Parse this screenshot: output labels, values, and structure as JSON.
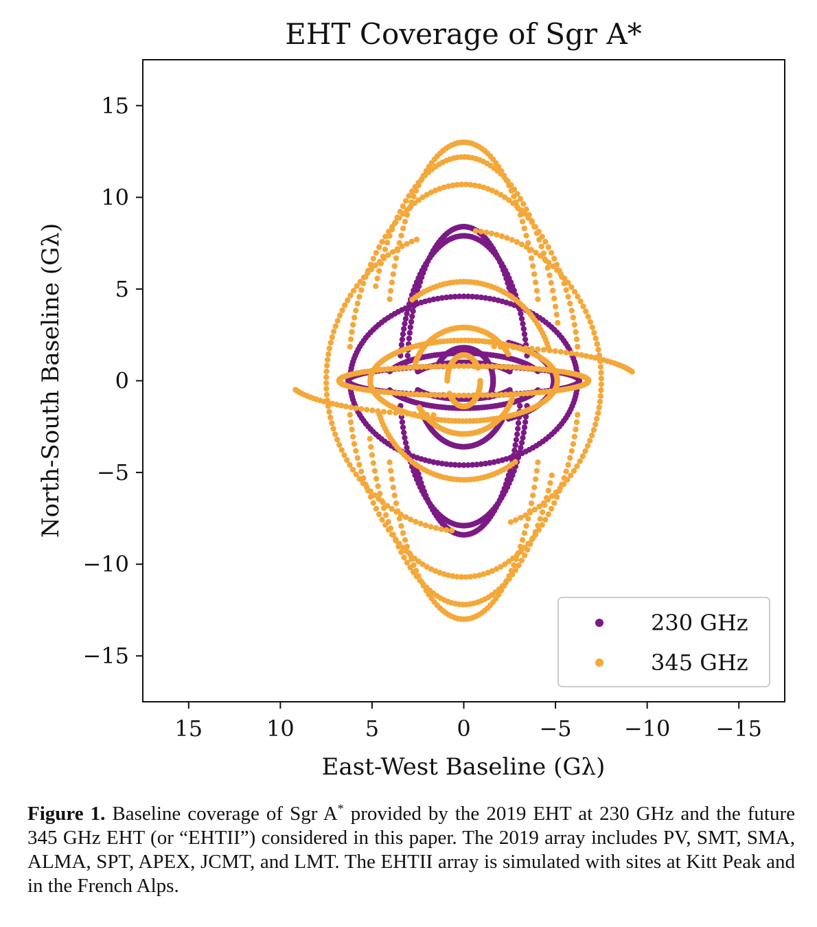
{
  "chart_data": {
    "type": "scatter",
    "title": "EHT Coverage of Sgr A*",
    "xlabel": "East-West Baseline (Gλ)",
    "ylabel": "North-South Baseline (Gλ)",
    "xlim": [
      17.5,
      -17.5
    ],
    "ylim": [
      -17.5,
      17.5
    ],
    "x_inverted": true,
    "xticks": [
      15,
      10,
      5,
      0,
      -5,
      -10,
      -15
    ],
    "yticks": [
      15,
      10,
      5,
      0,
      -5,
      -10,
      -15
    ],
    "xtick_labels": [
      "15",
      "10",
      "5",
      "0",
      "−5",
      "−10",
      "−15"
    ],
    "ytick_labels": [
      "15",
      "10",
      "5",
      "0",
      "−5",
      "−10",
      "−15"
    ],
    "legend_position": "lower-right",
    "series": [
      {
        "name": "230 GHz",
        "color": "#7b1a85",
        "tracks": [
          {
            "rx": 3.1,
            "ry": 8.4,
            "t0": 5,
            "t1": 145
          },
          {
            "rx": 3.5,
            "ry": 7.9,
            "t0": 10,
            "t1": 170
          },
          {
            "rx": 6.2,
            "ry": 4.6,
            "t0": 2,
            "t1": 178
          },
          {
            "rx": 6.3,
            "ry": 0.8,
            "t0": 95,
            "t1": 265
          },
          {
            "rx": 4.3,
            "ry": 1.5,
            "t0": 20,
            "t1": 160
          },
          {
            "rx": 2.9,
            "ry": 1.0,
            "t0": 30,
            "t1": 150
          },
          {
            "rx": 4.9,
            "ry": 2.4,
            "t0": 120,
            "t1": 240
          },
          {
            "rx": 1.6,
            "ry": 1.8,
            "t0": 30,
            "t1": 210
          },
          {
            "rx": 2.6,
            "ry": 3.6,
            "t0": 210,
            "t1": 330
          },
          {
            "rx": 6.2,
            "ry": 4.6,
            "t0": 182,
            "t1": 358
          },
          {
            "rx": 6.3,
            "ry": 0.8,
            "t0": 280,
            "t1": 440
          },
          {
            "rx": 3.1,
            "ry": 8.4,
            "t0": 185,
            "t1": 325
          },
          {
            "rx": 3.5,
            "ry": 7.9,
            "t0": 190,
            "t1": 350
          },
          {
            "rx": 4.3,
            "ry": 1.5,
            "t0": 200,
            "t1": 340
          },
          {
            "rx": 2.9,
            "ry": 1.0,
            "t0": 210,
            "t1": 330
          }
        ]
      },
      {
        "name": "345 GHz",
        "color": "#f4a83a",
        "tracks": [
          {
            "rx": 4.3,
            "ry": 13.0,
            "t0": 20,
            "t1": 160
          },
          {
            "rx": 5.3,
            "ry": 12.2,
            "t0": 25,
            "t1": 165
          },
          {
            "rx": 6.3,
            "ry": 10.7,
            "t0": 10,
            "t1": 170
          },
          {
            "rx": 7.5,
            "ry": 8.2,
            "t0": 95,
            "t1": 250
          },
          {
            "rx": 9.5,
            "ry": 1.9,
            "t0": 100,
            "t1": 165
          },
          {
            "rx": 6.8,
            "ry": 0.8,
            "t0": 90,
            "t1": 270
          },
          {
            "rx": 4.9,
            "ry": 5.4,
            "t0": 55,
            "t1": 160
          },
          {
            "rx": 5.1,
            "ry": 2.2,
            "t0": 60,
            "t1": 255
          },
          {
            "rx": 0.9,
            "ry": 1.4,
            "t0": 180,
            "t1": 330
          },
          {
            "rx": 2.8,
            "ry": 2.9,
            "t0": 200,
            "t1": 330
          },
          {
            "rx": 4.3,
            "ry": 13.0,
            "t0": 200,
            "t1": 340
          },
          {
            "rx": 5.3,
            "ry": 12.2,
            "t0": 205,
            "t1": 345
          },
          {
            "rx": 6.3,
            "ry": 10.7,
            "t0": 190,
            "t1": 350
          },
          {
            "rx": 7.5,
            "ry": 8.2,
            "t0": 275,
            "t1": 430
          },
          {
            "rx": 9.5,
            "ry": 1.9,
            "t0": 280,
            "t1": 345
          },
          {
            "rx": 6.8,
            "ry": 0.8,
            "t0": 270,
            "t1": 450
          },
          {
            "rx": 4.9,
            "ry": 5.4,
            "t0": 235,
            "t1": 340
          },
          {
            "rx": 5.1,
            "ry": 2.2,
            "t0": 240,
            "t1": 435
          },
          {
            "rx": 0.9,
            "ry": 1.4,
            "t0": 0,
            "t1": 150
          },
          {
            "rx": 2.8,
            "ry": 2.9,
            "t0": 20,
            "t1": 150
          }
        ]
      }
    ]
  },
  "caption": {
    "label": "Figure 1.",
    "text_before_sup": " Baseline coverage of Sgr A",
    "sup": "*",
    "text_after_sup": " provided by the 2019 EHT at 230 GHz and the future 345 GHz EHT (or “EHTII”) considered in this paper. The 2019 array includes PV, SMT, SMA, ALMA, SPT, APEX, JCMT, and LMT. The EHTII array is simulated with sites at Kitt Peak and in the French Alps."
  }
}
